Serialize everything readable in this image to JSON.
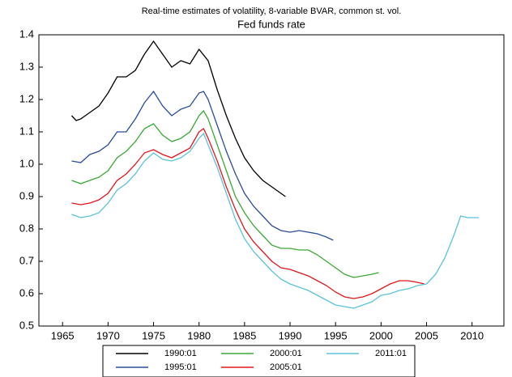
{
  "chart_data": {
    "type": "line",
    "title": "Real-time estimates of volatility, 8-variable BVAR, common st. vol.",
    "subtitle": "Fed funds rate",
    "xlim": [
      1962.4,
      2013.5
    ],
    "xticks": [
      1965,
      1970,
      1975,
      1980,
      1985,
      1990,
      1995,
      2000,
      2005,
      2010
    ],
    "ylim": [
      0.5,
      1.4
    ],
    "yticks": [
      0.5,
      0.6,
      0.7,
      0.8,
      0.9,
      {
        "value": 1,
        "label": "1.0"
      },
      1.1,
      1.2,
      1.3,
      1.4
    ],
    "series": [
      {
        "name": "1990:01",
        "color": "#000000",
        "x": [
          1966,
          1966.5,
          1967,
          1968,
          1969,
          1970,
          1971,
          1972,
          1973,
          1974,
          1975,
          1976,
          1977,
          1978,
          1979,
          1980,
          1981,
          1982,
          1983,
          1984,
          1985,
          1986,
          1987,
          1988,
          1989,
          1989.5
        ],
        "values": [
          1.15,
          1.135,
          1.14,
          1.16,
          1.18,
          1.22,
          1.27,
          1.27,
          1.29,
          1.34,
          1.38,
          1.34,
          1.3,
          1.32,
          1.31,
          1.355,
          1.32,
          1.23,
          1.15,
          1.08,
          1.02,
          0.98,
          0.95,
          0.93,
          0.91,
          0.9
        ]
      },
      {
        "name": "1995:01",
        "color": "#2b4c9a",
        "x": [
          1966,
          1967,
          1968,
          1969,
          1970,
          1971,
          1972,
          1973,
          1974,
          1975,
          1976,
          1977,
          1978,
          1979,
          1980,
          1980.5,
          1981,
          1982,
          1983,
          1984,
          1985,
          1986,
          1987,
          1988,
          1989,
          1990,
          1991,
          1992,
          1993,
          1994,
          1994.75
        ],
        "values": [
          1.01,
          1.005,
          1.03,
          1.04,
          1.06,
          1.1,
          1.1,
          1.14,
          1.19,
          1.225,
          1.18,
          1.15,
          1.17,
          1.18,
          1.22,
          1.225,
          1.2,
          1.12,
          1.04,
          0.97,
          0.91,
          0.87,
          0.84,
          0.81,
          0.795,
          0.79,
          0.795,
          0.79,
          0.785,
          0.775,
          0.765
        ]
      },
      {
        "name": "2000:01",
        "color": "#3aa935",
        "x": [
          1966,
          1967,
          1968,
          1969,
          1970,
          1971,
          1972,
          1973,
          1974,
          1975,
          1976,
          1977,
          1978,
          1979,
          1980,
          1980.5,
          1981,
          1982,
          1983,
          1984,
          1985,
          1986,
          1987,
          1988,
          1989,
          1990,
          1991,
          1992,
          1993,
          1994,
          1995,
          1996,
          1997,
          1998,
          1999,
          1999.75
        ],
        "values": [
          0.95,
          0.94,
          0.95,
          0.96,
          0.98,
          1.02,
          1.04,
          1.07,
          1.11,
          1.125,
          1.09,
          1.07,
          1.08,
          1.1,
          1.15,
          1.165,
          1.14,
          1.06,
          0.98,
          0.9,
          0.85,
          0.81,
          0.78,
          0.75,
          0.74,
          0.74,
          0.735,
          0.735,
          0.72,
          0.7,
          0.68,
          0.66,
          0.65,
          0.655,
          0.66,
          0.665
        ]
      },
      {
        "name": "2005:01",
        "color": "#e3161b",
        "x": [
          1966,
          1967,
          1968,
          1969,
          1970,
          1971,
          1972,
          1973,
          1974,
          1975,
          1976,
          1977,
          1978,
          1979,
          1980,
          1980.5,
          1981,
          1982,
          1983,
          1984,
          1985,
          1986,
          1987,
          1988,
          1989,
          1990,
          1991,
          1992,
          1993,
          1994,
          1995,
          1996,
          1997,
          1998,
          1999,
          2000,
          2001,
          2002,
          2003,
          2004,
          2004.75
        ],
        "values": [
          0.88,
          0.875,
          0.88,
          0.89,
          0.91,
          0.95,
          0.97,
          1.0,
          1.035,
          1.045,
          1.03,
          1.02,
          1.035,
          1.05,
          1.1,
          1.11,
          1.08,
          1.01,
          0.93,
          0.86,
          0.8,
          0.76,
          0.73,
          0.7,
          0.68,
          0.675,
          0.665,
          0.655,
          0.64,
          0.625,
          0.605,
          0.59,
          0.585,
          0.59,
          0.6,
          0.615,
          0.63,
          0.64,
          0.64,
          0.635,
          0.63
        ]
      },
      {
        "name": "2011:01",
        "color": "#5bc2dc",
        "x": [
          1966,
          1967,
          1968,
          1969,
          1970,
          1971,
          1972,
          1973,
          1974,
          1975,
          1976,
          1977,
          1978,
          1979,
          1980,
          1980.5,
          1981,
          1982,
          1983,
          1984,
          1985,
          1986,
          1987,
          1988,
          1989,
          1990,
          1991,
          1992,
          1993,
          1994,
          1995,
          1996,
          1997,
          1998,
          1999,
          2000,
          2001,
          2002,
          2003,
          2004,
          2005,
          2006,
          2007,
          2008,
          2008.75,
          2009.5,
          2010,
          2010.75
        ],
        "values": [
          0.845,
          0.835,
          0.84,
          0.85,
          0.88,
          0.92,
          0.94,
          0.97,
          1.01,
          1.035,
          1.015,
          1.01,
          1.02,
          1.04,
          1.08,
          1.095,
          1.06,
          0.99,
          0.91,
          0.83,
          0.77,
          0.73,
          0.7,
          0.67,
          0.645,
          0.63,
          0.62,
          0.61,
          0.595,
          0.58,
          0.565,
          0.56,
          0.555,
          0.565,
          0.575,
          0.595,
          0.6,
          0.61,
          0.615,
          0.625,
          0.63,
          0.66,
          0.71,
          0.78,
          0.84,
          0.835,
          0.835,
          0.835
        ]
      }
    ]
  }
}
